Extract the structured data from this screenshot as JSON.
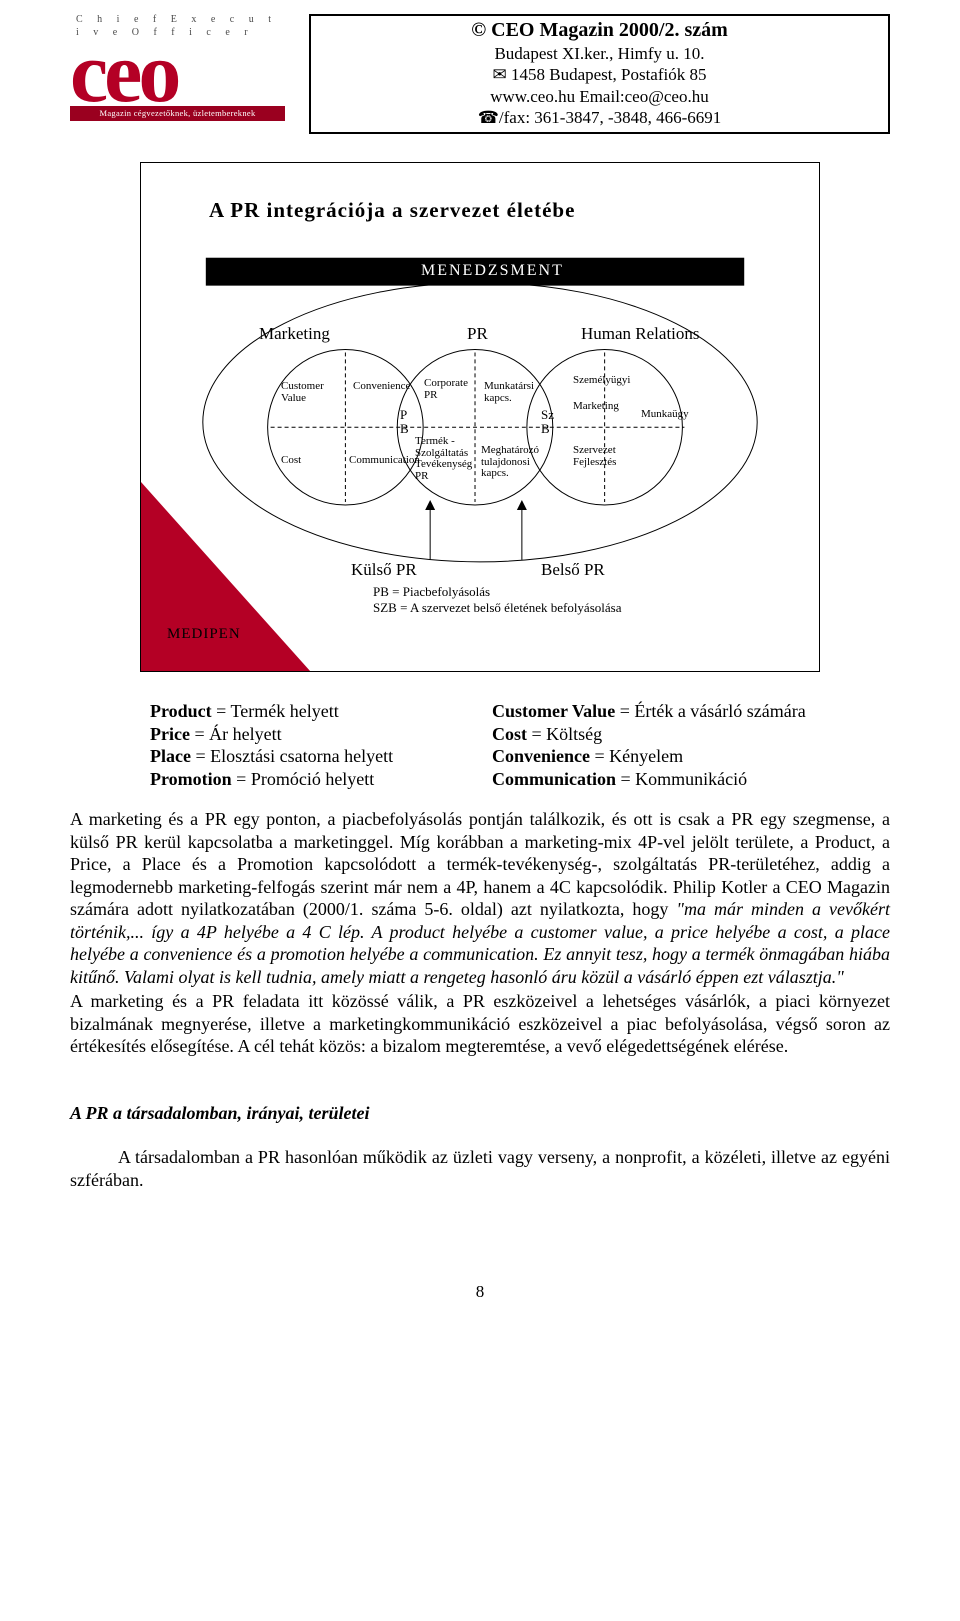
{
  "header": {
    "logo_top": "C h i e f   E x e c u t i v e   O f f i c e r",
    "logo_main": "ceo",
    "logo_sub": "Magazin cégvezetőknek, üzletembereknek",
    "line1": "© CEO Magazin 2000/2. szám",
    "line2": "Budapest XI.ker., Himfy u. 10.",
    "line3": "✉ 1458 Budapest, Postafiók 85",
    "line4": "www.ceo.hu  Email:ceo@ceo.hu",
    "line5": "☎/fax: 361-3847, -3848, 466-6691"
  },
  "diagram": {
    "title": "A PR integrációja a szervezet életébe",
    "band": "MENEDZSMENT",
    "col_marketing": "Marketing",
    "col_pr": "PR",
    "col_hr": "Human Relations",
    "custval": "Customer\nValue",
    "cost": "Cost",
    "conv": "Convenience",
    "comm": "Communication",
    "corp_pr": "Corporate\nPR",
    "tszt": "Termék -\nSzolgáltatás\nTevékenység\nPR",
    "munka_k": "Munkatársi\nkapcs.",
    "megh": "Meghatározó\ntulajdonosi\nkapcs.",
    "szemelyugyi": "Személyügyi",
    "mark2": "Marketing",
    "munkaugy": "Munkaügy",
    "szervfej": "Szervezet\nFejlesztés",
    "pb_left": "P\nB",
    "szb_right": "Sz\nB",
    "kulso": "Külső PR",
    "belso": "Belső PR",
    "legend1": "PB   = Piacbefolyásolás",
    "legend2": "SZB = A szervezet belső életének befolyásolása",
    "medipen": "MEDIPEN",
    "colors": {
      "outline": "#000000",
      "fill_black": "#000000",
      "red_wedge": "#b40025",
      "ellipse_stroke": "#000000"
    }
  },
  "defs": {
    "left": [
      {
        "b": "Product",
        "rest": " = Termék helyett"
      },
      {
        "b": "Price",
        "rest": " = Ár helyett"
      },
      {
        "b": "Place",
        "rest": " = Elosztási csatorna helyett"
      },
      {
        "b": "Promotion",
        "rest": " = Promóció helyett"
      }
    ],
    "right": [
      {
        "b": "Customer Value",
        "rest": " = Érték a vásárló számára"
      },
      {
        "b": "Cost",
        "rest": " = Költség"
      },
      {
        "b": "Convenience",
        "rest": " = Kényelem"
      },
      {
        "b": "Communication",
        "rest": " = Kommunikáció"
      }
    ]
  },
  "paras": {
    "p1a": "A marketing és a PR egy ponton, a piacbefolyásolás pontján találkozik, és ott is csak a PR egy szegmense, a külső PR kerül kapcsolatba a marketinggel. Míg korábban a marketing-mix 4P-vel jelölt területe, a Product, a Price, a Place és a Promotion kapcsolódott a termék-tevékenység-, szolgáltatás PR-területéhez, addig a legmodernebb marketing-felfogás szerint már nem a 4P, hanem a 4C kapcsolódik. Philip Kotler a CEO Magazin számára adott nyilatkozatában (2000/1. száma 5-6. oldal) azt nyilatkozta, hogy ",
    "p1b_it": "\"ma már minden a vevőkért történik,... így a 4P helyébe a 4 C lép. A product helyébe a customer value, a price helyébe a cost, a place helyébe a convenience és a promotion helyébe a communication. Ez annyit tesz, hogy a termék önmagában hiába kitűnő. Valami olyat is kell tudnia, amely miatt a rengeteg hasonló áru közül a vásárló éppen ezt választja.\"",
    "p2": "A marketing és a PR feladata itt közössé válik, a PR eszközeivel a lehetséges vásárlók, a piaci környezet bizalmának megnyerése, illetve a marketingkommunikáció eszközeivel a piac befolyásolása, végső soron az értékesítés elősegítése. A cél tehát közös: a bizalom megteremtése, a vevő elégedettségének elérése.",
    "section": "A PR a társadalomban, irányai, területei",
    "p3": "A társadalomban a PR hasonlóan működik az üzleti vagy verseny, a nonprofit, a közéleti, illetve az egyéni szférában."
  },
  "footer": {
    "page": "8"
  }
}
